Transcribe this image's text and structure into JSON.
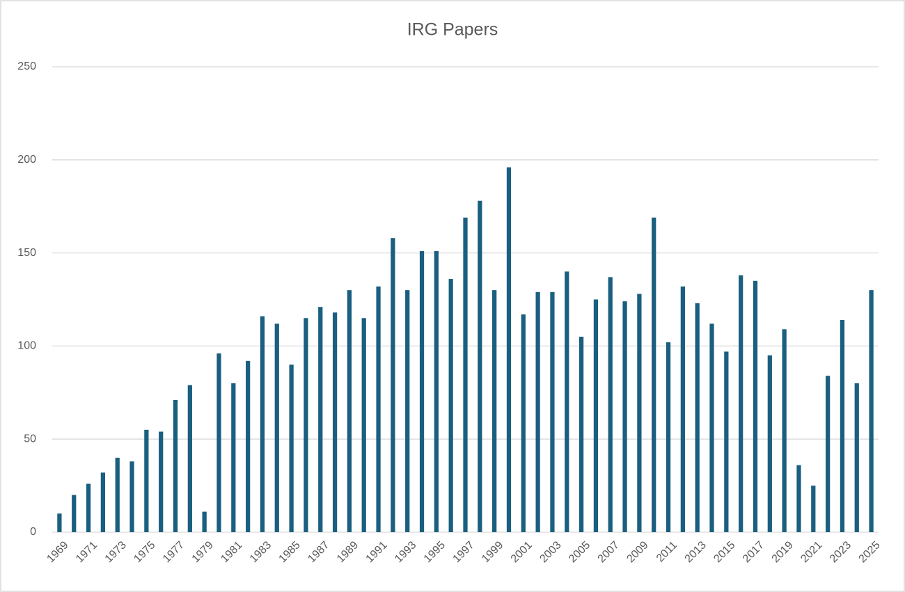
{
  "chart_data": {
    "type": "bar",
    "title": "IRG Papers",
    "categories": [
      "1969",
      null,
      "1971",
      null,
      "1973",
      null,
      "1975",
      null,
      "1977",
      null,
      "1979",
      null,
      "1981",
      null,
      "1983",
      null,
      "1985",
      null,
      "1987",
      null,
      "1989",
      null,
      "1991",
      null,
      "1993",
      null,
      "1995",
      null,
      "1997",
      null,
      "1999",
      null,
      "2001",
      null,
      "2003",
      null,
      "2005",
      null,
      "2007",
      null,
      "2009",
      null,
      "2011",
      null,
      "2013",
      null,
      "2015",
      null,
      "2017",
      null,
      "2019",
      null,
      "2021",
      null,
      "2023",
      null,
      "2025"
    ],
    "values": [
      10,
      20,
      26,
      32,
      40,
      38,
      55,
      54,
      71,
      79,
      11,
      96,
      80,
      92,
      116,
      112,
      90,
      115,
      121,
      118,
      130,
      115,
      132,
      158,
      130,
      151,
      151,
      136,
      169,
      178,
      130,
      196,
      117,
      129,
      129,
      140,
      105,
      125,
      137,
      124,
      128,
      169,
      102,
      132,
      123,
      112,
      97,
      138,
      135,
      95,
      109,
      36,
      25,
      84,
      114,
      80,
      130
    ],
    "color": "#1a5f7f",
    "ylim": [
      0,
      250
    ],
    "yticks": [
      0,
      50,
      100,
      150,
      200,
      250
    ],
    "grid": true
  }
}
